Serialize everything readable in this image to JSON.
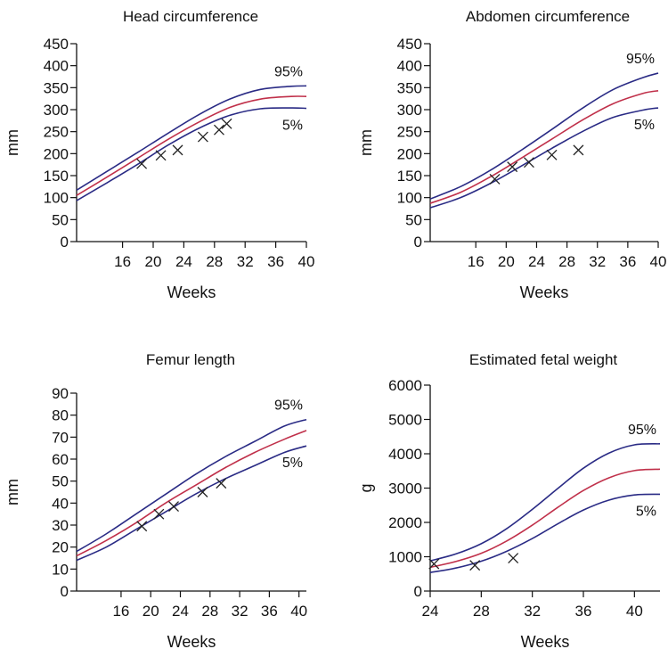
{
  "colors": {
    "outer_curves": "#2a2b85",
    "median_curve": "#c0304a",
    "markers": "#222222"
  },
  "chart_data": [
    {
      "type": "line",
      "title": "Head circumference",
      "xlabel": "Weeks",
      "ylabel": "mm",
      "xlim": [
        10,
        40
      ],
      "ylim": [
        0,
        450
      ],
      "xticks": [
        16,
        20,
        24,
        28,
        32,
        36,
        40
      ],
      "yticks": [
        0,
        50,
        100,
        150,
        200,
        250,
        300,
        350,
        400,
        450
      ],
      "percentile_labels": {
        "upper": "95%",
        "lower": "5%"
      },
      "series": [
        {
          "x": [
            10,
            14,
            18,
            22,
            26,
            30,
            34,
            38,
            40
          ],
          "values": [
            117,
            160,
            203,
            247,
            289,
            324,
            346,
            353,
            354
          ]
        },
        {
          "x": [
            10,
            14,
            18,
            22,
            26,
            30,
            34,
            38,
            40
          ],
          "values": [
            105,
            147,
            190,
            233,
            272,
            305,
            324,
            330,
            330
          ]
        },
        {
          "x": [
            10,
            14,
            18,
            22,
            26,
            30,
            34,
            38,
            40
          ],
          "values": [
            93,
            134,
            176,
            220,
            258,
            287,
            302,
            304,
            303
          ]
        }
      ],
      "points": {
        "x": [
          18.5,
          21,
          23.2,
          26.5,
          28.6,
          29.6
        ],
        "y": [
          177,
          196,
          208,
          238,
          254,
          268
        ]
      }
    },
    {
      "type": "line",
      "title": "Abdomen circumference",
      "xlabel": "Weeks",
      "ylabel": "mm",
      "xlim": [
        10,
        40
      ],
      "ylim": [
        0,
        450
      ],
      "xticks": [
        16,
        20,
        24,
        28,
        32,
        36,
        40
      ],
      "yticks": [
        0,
        50,
        100,
        150,
        200,
        250,
        300,
        350,
        400,
        450
      ],
      "percentile_labels": {
        "upper": "95%",
        "lower": "5%"
      },
      "series": [
        {
          "x": [
            10,
            14,
            18,
            22,
            26,
            30,
            34,
            38,
            40
          ],
          "values": [
            97,
            125,
            163,
            208,
            255,
            303,
            345,
            373,
            383
          ]
        },
        {
          "x": [
            10,
            14,
            18,
            22,
            26,
            30,
            34,
            38,
            40
          ],
          "values": [
            87,
            112,
            148,
            190,
            233,
            276,
            313,
            337,
            343
          ]
        },
        {
          "x": [
            10,
            14,
            18,
            22,
            26,
            30,
            34,
            38,
            40
          ],
          "values": [
            77,
            100,
            133,
            172,
            212,
            250,
            282,
            299,
            304
          ]
        }
      ],
      "points": {
        "x": [
          18.5,
          20.8,
          23,
          26,
          29.5
        ],
        "y": [
          142,
          170,
          180,
          197,
          208
        ]
      }
    },
    {
      "type": "line",
      "title": "Femur length",
      "xlabel": "Weeks",
      "ylabel": "mm",
      "xlim": [
        10,
        41
      ],
      "ylim": [
        0,
        90
      ],
      "xticks": [
        16,
        20,
        24,
        28,
        32,
        36,
        40
      ],
      "yticks": [
        0,
        10,
        20,
        30,
        40,
        50,
        60,
        70,
        80,
        90
      ],
      "percentile_labels": {
        "upper": "95%",
        "lower": "5%"
      },
      "series": [
        {
          "x": [
            10,
            14,
            18,
            22,
            26,
            30,
            34,
            38,
            41
          ],
          "values": [
            18,
            26,
            35,
            44,
            53,
            61,
            68,
            75,
            78
          ]
        },
        {
          "x": [
            10,
            14,
            18,
            22,
            26,
            30,
            34,
            38,
            41
          ],
          "values": [
            16,
            23,
            31,
            40,
            48,
            56,
            63,
            69,
            73
          ]
        },
        {
          "x": [
            10,
            14,
            18,
            22,
            26,
            30,
            34,
            38,
            41
          ],
          "values": [
            14,
            20,
            28,
            36,
            44,
            51,
            57,
            63,
            66
          ]
        }
      ],
      "points": {
        "x": [
          18.8,
          21.1,
          23.1,
          27,
          29.5
        ],
        "y": [
          29.5,
          35,
          38.5,
          45,
          49
        ]
      }
    },
    {
      "type": "line",
      "title": "Estimated fetal weight",
      "xlabel": "Weeks",
      "ylabel": "g",
      "xlim": [
        24,
        42
      ],
      "ylim": [
        0,
        6000
      ],
      "xticks": [
        24,
        28,
        32,
        36,
        40
      ],
      "yticks": [
        0,
        1000,
        2000,
        3000,
        4000,
        5000,
        6000
      ],
      "percentile_labels": {
        "upper": "95%",
        "lower": "5%"
      },
      "series": [
        {
          "x": [
            24,
            26,
            28,
            30,
            32,
            34,
            36,
            38,
            40,
            42
          ],
          "values": [
            880,
            1080,
            1380,
            1820,
            2380,
            2990,
            3580,
            4020,
            4260,
            4290
          ]
        },
        {
          "x": [
            24,
            26,
            28,
            30,
            32,
            34,
            36,
            38,
            40,
            42
          ],
          "values": [
            690,
            860,
            1100,
            1460,
            1920,
            2440,
            2930,
            3300,
            3510,
            3550
          ]
        },
        {
          "x": [
            24,
            26,
            28,
            30,
            32,
            34,
            36,
            38,
            40,
            42
          ],
          "values": [
            540,
            670,
            870,
            1160,
            1530,
            1960,
            2360,
            2650,
            2800,
            2820
          ]
        }
      ],
      "points": {
        "x": [
          24.3,
          27.5,
          30.5
        ],
        "y": [
          790,
          750,
          960
        ]
      }
    }
  ]
}
